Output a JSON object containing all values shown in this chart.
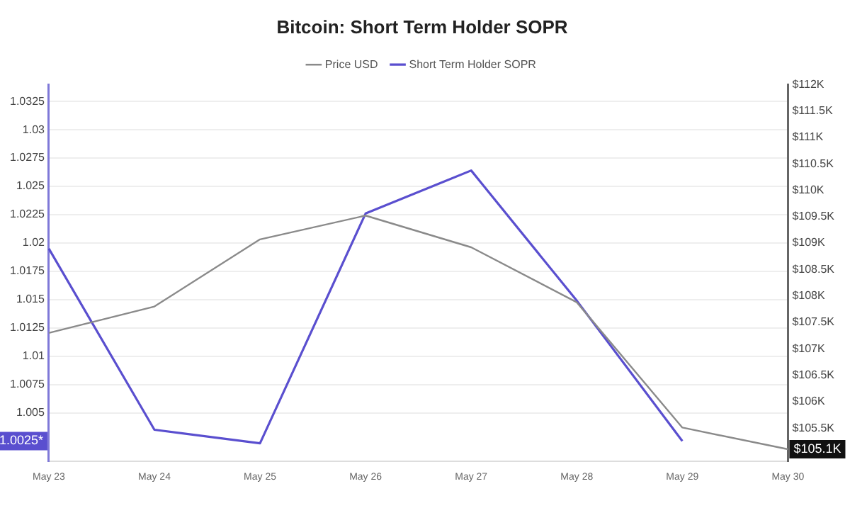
{
  "chart_data": {
    "type": "line",
    "title": "Bitcoin: Short Term Holder SOPR",
    "categories": [
      "May 23",
      "May 24",
      "May 25",
      "May 26",
      "May 27",
      "May 28",
      "May 29",
      "May 30"
    ],
    "series": [
      {
        "name": "Price USD",
        "color": "#8a8a8a",
        "axis": "y2",
        "values": [
          107300,
          107800,
          109070,
          109520,
          108920,
          107880,
          105510,
          105100
        ]
      },
      {
        "name": "Short Term Holder SOPR",
        "color": "#5a4fcf",
        "axis": "y",
        "values": [
          1.0195,
          1.0035,
          1.0023,
          1.0226,
          1.0264,
          1.0149,
          1.0025,
          null
        ]
      }
    ],
    "annotations": [
      "$105.1K",
      "1.0025*"
    ],
    "ylim": [
      1.0007,
      1.034
    ],
    "yticks": [
      1.005,
      1.0075,
      1.01,
      1.0125,
      1.015,
      1.0175,
      1.02,
      1.0225,
      1.025,
      1.0275,
      1.03,
      1.0325
    ],
    "y2lim": [
      104870,
      112000
    ],
    "y2ticks": [
      {
        "value": 105500,
        "label": "$105.5K"
      },
      {
        "value": 106000,
        "label": "$106K"
      },
      {
        "value": 106500,
        "label": "$106.5K"
      },
      {
        "value": 107000,
        "label": "$107K"
      },
      {
        "value": 107500,
        "label": "$107.5K"
      },
      {
        "value": 108000,
        "label": "$108K"
      },
      {
        "value": 108500,
        "label": "$108.5K"
      },
      {
        "value": 109000,
        "label": "$109K"
      },
      {
        "value": 109500,
        "label": "$109.5K"
      },
      {
        "value": 110000,
        "label": "$110K"
      },
      {
        "value": 110500,
        "label": "$110.5K"
      },
      {
        "value": 111000,
        "label": "$111K"
      },
      {
        "value": 111500,
        "label": "$111.5K"
      },
      {
        "value": 112000,
        "label": "$112K"
      }
    ],
    "grid": "y",
    "legend": "top",
    "marker": "none",
    "line_style": "solid"
  }
}
